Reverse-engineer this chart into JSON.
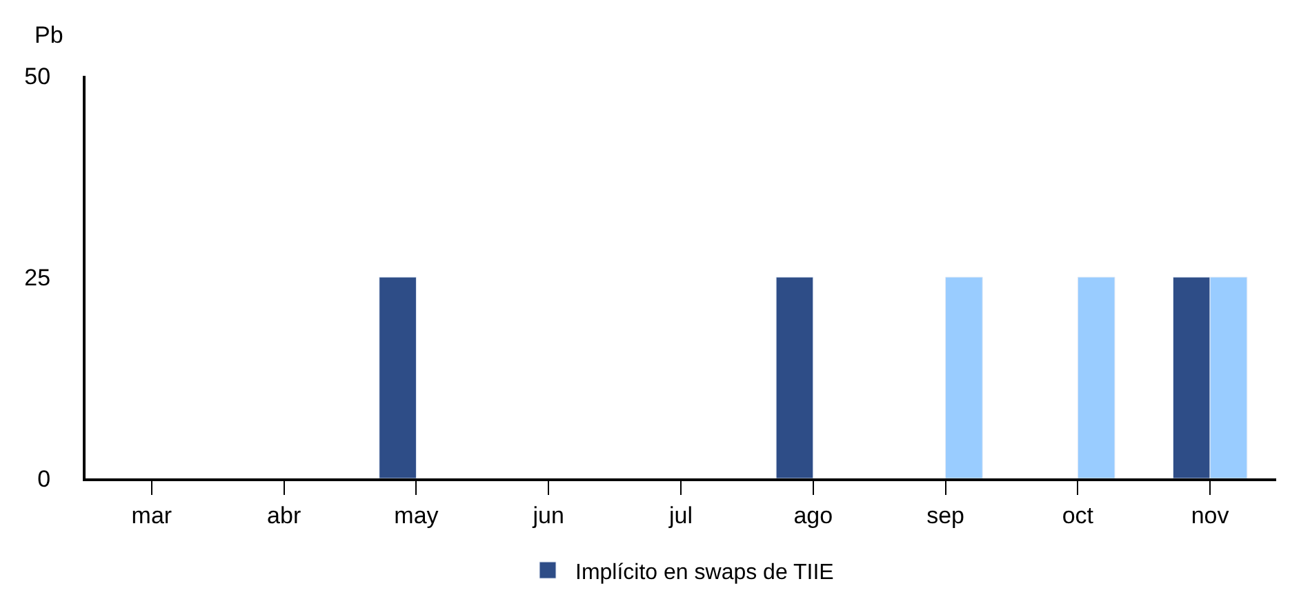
{
  "chart_data": {
    "type": "bar",
    "ylabel": "Pb",
    "categories": [
      "mar",
      "abr",
      "may",
      "jun",
      "jul",
      "ago",
      "sep",
      "oct",
      "nov"
    ],
    "series": [
      {
        "name": "Implícito en swaps de TIIE",
        "color": "#2e4d87",
        "values": [
          null,
          null,
          25,
          null,
          null,
          25,
          null,
          null,
          25
        ]
      },
      {
        "color": "#99ccff",
        "values": [
          null,
          null,
          null,
          null,
          null,
          null,
          25,
          25,
          25
        ]
      }
    ],
    "ylim": [
      0,
      50
    ],
    "yticks": [
      0,
      25,
      50
    ],
    "legend": "bottom"
  }
}
